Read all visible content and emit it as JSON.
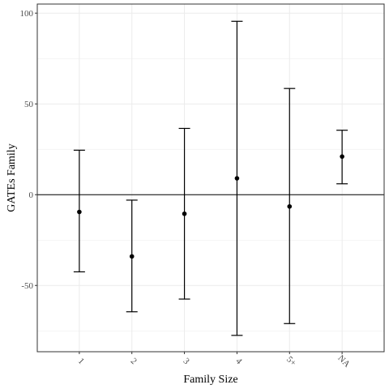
{
  "chart_data": {
    "type": "errorbar",
    "title": "",
    "xlabel": "Family Size",
    "ylabel": "GATEs Family",
    "categories": [
      "1",
      "2",
      "3",
      "4",
      "5+",
      "NA"
    ],
    "estimates": [
      -9.5,
      -34,
      -10.5,
      9,
      -6.5,
      21
    ],
    "lower": [
      -42.5,
      -64.5,
      -57.5,
      -77.5,
      -71,
      6
    ],
    "upper": [
      24.5,
      -3,
      36.5,
      95.5,
      58.5,
      35.5
    ],
    "yticks": [
      -50,
      0,
      50,
      100
    ],
    "ylim": [
      -86.5,
      105
    ],
    "reference_line": 0,
    "grid": true,
    "colors": {
      "points": "#000000",
      "grid": "#ebebeb",
      "panel_border": "#333333"
    }
  }
}
